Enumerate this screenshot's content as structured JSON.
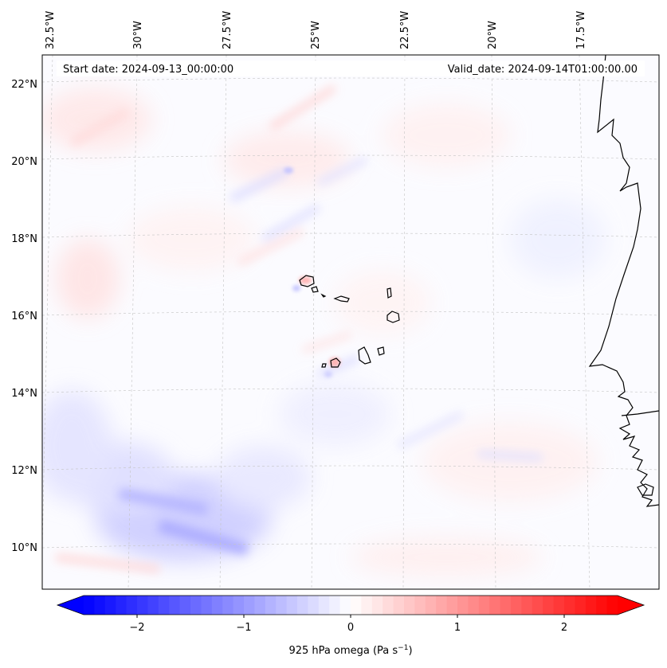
{
  "header": {
    "start_date": "Start date: 2024-09-13_00:00:00",
    "valid_date": "Valid_date: 2024-09-14T01:00:00.00"
  },
  "longitude_labels": [
    "32.5°W",
    "30°W",
    "27.5°W",
    "25°W",
    "22.5°W",
    "20°W",
    "17.5°W"
  ],
  "latitude_labels": [
    "22°N",
    "20°N",
    "18°N",
    "16°N",
    "14°N",
    "12°N",
    "10°N"
  ],
  "colorbar": {
    "ticks": [
      "−2",
      "−1",
      "0",
      "1",
      "2"
    ],
    "label_main": "925 hPa omega (Pa s",
    "label_exp": "−1",
    "label_close": ")",
    "min": -2.6,
    "max": 2.6,
    "colormap": "bwr",
    "color_low": "#0000ff",
    "color_mid": "#ffffff",
    "color_high": "#ff0000"
  },
  "colors": {
    "coastline": "#000000",
    "gridline": "#bbbbbb"
  }
}
